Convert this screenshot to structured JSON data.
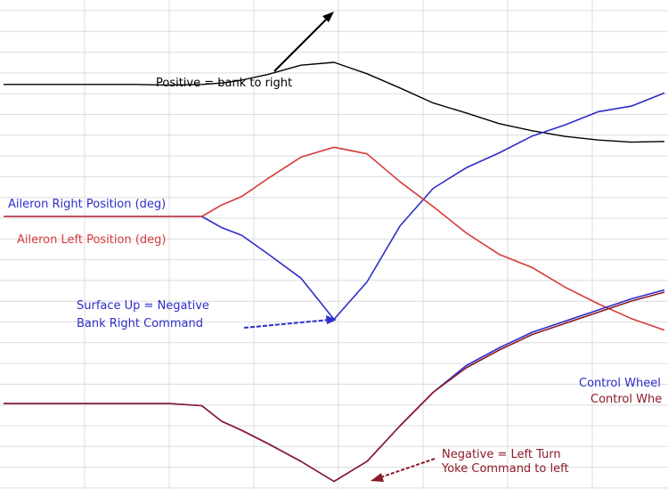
{
  "chart_data": {
    "type": "line",
    "title": "",
    "xlabel": "",
    "ylabel": "",
    "xlim": [
      0,
      100
    ],
    "ylim": [
      -10,
      10
    ],
    "grid": true,
    "colors": {
      "black": "#000000",
      "blue": "#2d2dc8",
      "red": "#d63a3a",
      "maroon": "#8c1a28",
      "grid": "#dcdcdc"
    },
    "x": [
      0,
      5,
      10,
      15,
      20,
      25,
      30,
      33,
      36,
      40,
      45,
      50,
      55,
      60,
      65,
      70,
      75,
      80,
      85,
      90,
      95,
      100
    ],
    "series": [
      {
        "key": "bank",
        "color": "#000000",
        "values": [
          6.9,
          6.9,
          6.9,
          6.9,
          6.9,
          6.8,
          6.9,
          7.1,
          7.5,
          8.3,
          9.6,
          10.0,
          8.4,
          6.4,
          4.3,
          2.9,
          1.4,
          0.4,
          -0.4,
          -0.9,
          -1.2,
          -1.1
        ]
      },
      {
        "key": "aileron_right",
        "name": "Aileron Right Position (deg)",
        "color": "#2d2dc8",
        "values": [
          0.0,
          0.0,
          0.0,
          0.0,
          0.0,
          0.0,
          0.0,
          -0.6,
          -1.0,
          -2.0,
          -3.3,
          -5.5,
          -3.5,
          -0.5,
          1.5,
          2.6,
          3.4,
          4.3,
          4.9,
          5.6,
          5.9,
          6.6
        ]
      },
      {
        "key": "aileron_left",
        "name": "Aileron Left Position (deg)",
        "color": "#d63a3a",
        "values": [
          0.0,
          0.0,
          0.0,
          0.0,
          0.0,
          0.0,
          0.0,
          0.7,
          1.2,
          2.3,
          3.6,
          4.2,
          3.8,
          2.1,
          0.6,
          -1.0,
          -2.3,
          -3.1,
          -4.3,
          -5.3,
          -6.2,
          -6.9
        ]
      },
      {
        "key": "wheel_1",
        "name": "Control Wheel",
        "color": "#2d2dc8",
        "values": [
          -5.2,
          -5.2,
          -5.2,
          -5.2,
          -5.2,
          -5.2,
          -5.3,
          -6.0,
          -6.4,
          -7.0,
          -7.8,
          -8.7,
          -7.8,
          -6.2,
          -4.7,
          -3.5,
          -2.7,
          -2.0,
          -1.5,
          -1.0,
          -0.5,
          -0.1
        ]
      },
      {
        "key": "wheel_2",
        "name": "Control Whe",
        "color": "#8c1a28",
        "values": [
          -5.2,
          -5.2,
          -5.2,
          -5.2,
          -5.2,
          -5.2,
          -5.3,
          -6.0,
          -6.4,
          -7.0,
          -7.8,
          -8.7,
          -7.8,
          -6.2,
          -4.7,
          -3.6,
          -2.8,
          -2.1,
          -1.6,
          -1.1,
          -0.6,
          -0.2
        ]
      }
    ],
    "annotations": [
      {
        "text": "Positive = bank to right",
        "color": "#000000"
      },
      {
        "text": "Surface Up = Negative",
        "color": "#2d2dc8"
      },
      {
        "text": "Bank Right Command",
        "color": "#2d2dc8"
      },
      {
        "text": "Negative = Left Turn",
        "color": "#8c1a28"
      },
      {
        "text": "Yoke Command to left",
        "color": "#8c1a28"
      }
    ]
  }
}
